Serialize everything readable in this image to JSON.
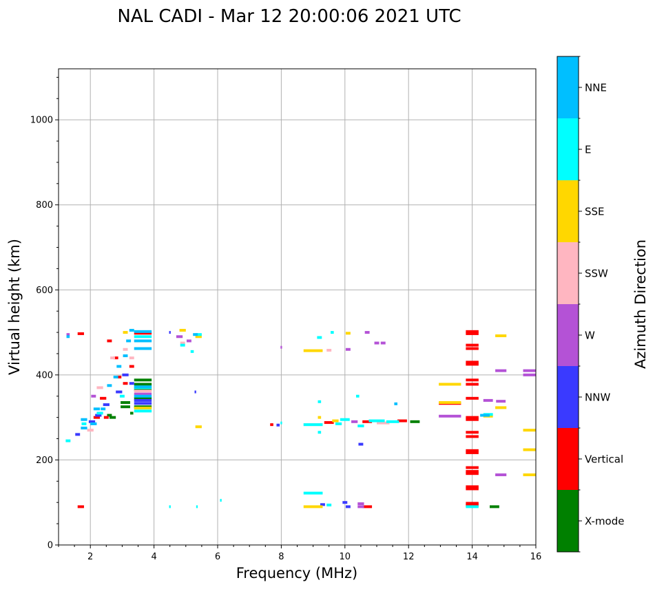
{
  "chart_data": {
    "type": "scatter",
    "title": "NAL CADI - Mar 12 20:00:06 2021 UTC",
    "xlabel": "Frequency (MHz)",
    "ylabel": "Virtual height (km)",
    "xlim": [
      1,
      16
    ],
    "ylim": [
      0,
      1120
    ],
    "x_ticks": [
      2,
      4,
      6,
      8,
      10,
      12,
      14,
      16
    ],
    "x_tick_labels": [
      "2",
      "4",
      "6",
      "8",
      "10",
      "12",
      "14",
      "16"
    ],
    "y_ticks": [
      0,
      200,
      400,
      600,
      800,
      1000
    ],
    "y_tick_labels": [
      "0",
      "200",
      "400",
      "600",
      "800",
      "1000"
    ],
    "grid": true,
    "colorbar": {
      "title": "Azimuth Direction",
      "categories": [
        {
          "name": "X-mode",
          "color": "#008000"
        },
        {
          "name": "Vertical",
          "color": "#ff0000"
        },
        {
          "name": "NNW",
          "color": "#3a3aff"
        },
        {
          "name": "W",
          "color": "#b452d6"
        },
        {
          "name": "SSW",
          "color": "#ffb6c1"
        },
        {
          "name": "SSE",
          "color": "#ffd700"
        },
        {
          "name": "E",
          "color": "#00ffff"
        },
        {
          "name": "NNE",
          "color": "#00bfff"
        }
      ]
    },
    "series": [
      {
        "name": "X-mode",
        "points": [
          [
            3.1,
            325,
            0.3
          ],
          [
            3.1,
            335,
            0.3
          ],
          [
            3.65,
            325,
            0.55
          ],
          [
            3.65,
            345,
            0.55
          ],
          [
            3.65,
            365,
            0.55
          ],
          [
            3.65,
            378,
            0.55
          ],
          [
            3.65,
            388,
            0.55
          ],
          [
            2.7,
            300,
            0.2
          ],
          [
            2.6,
            305,
            0.15
          ],
          [
            3.3,
            310,
            0.1
          ],
          [
            12.2,
            290,
            0.3
          ],
          [
            14.7,
            90,
            0.3
          ]
        ]
      },
      {
        "name": "Vertical",
        "points": [
          [
            1.7,
            497,
            0.2
          ],
          [
            1.7,
            90,
            0.2
          ],
          [
            2.6,
            480,
            0.15
          ],
          [
            2.8,
            440,
            0.15
          ],
          [
            3.3,
            420,
            0.15
          ],
          [
            3.65,
            498,
            0.55
          ],
          [
            2.4,
            345,
            0.2
          ],
          [
            2.9,
            395,
            0.15
          ],
          [
            3.1,
            380,
            0.15
          ],
          [
            2.2,
            300,
            0.2
          ],
          [
            2.5,
            300,
            0.15
          ],
          [
            9.5,
            288,
            0.3
          ],
          [
            10.7,
            290,
            0.3
          ],
          [
            11.8,
            292,
            0.3
          ],
          [
            10.7,
            90,
            0.3
          ],
          [
            13.3,
            333,
            0.7
          ],
          [
            14,
            502,
            0.4
          ],
          [
            14,
            497,
            0.4
          ],
          [
            14,
            470,
            0.4
          ],
          [
            14,
            462,
            0.4
          ],
          [
            14,
            430,
            0.4
          ],
          [
            14,
            425,
            0.4
          ],
          [
            14,
            388,
            0.4
          ],
          [
            14,
            378,
            0.4
          ],
          [
            14,
            345,
            0.4
          ],
          [
            14,
            300,
            0.4
          ],
          [
            14,
            295,
            0.4
          ],
          [
            14,
            265,
            0.4
          ],
          [
            14,
            255,
            0.4
          ],
          [
            14,
            222,
            0.4
          ],
          [
            14,
            217,
            0.4
          ],
          [
            14,
            182,
            0.4
          ],
          [
            14,
            173,
            0.4
          ],
          [
            14,
            168,
            0.4
          ],
          [
            14,
            137,
            0.4
          ],
          [
            14,
            132,
            0.4
          ],
          [
            14,
            98,
            0.4
          ],
          [
            14,
            93,
            0.4
          ],
          [
            7.7,
            283,
            0.1
          ]
        ]
      },
      {
        "name": "NNW",
        "points": [
          [
            1.6,
            260,
            0.15
          ],
          [
            2.05,
            290,
            0.2
          ],
          [
            2.25,
            305,
            0.2
          ],
          [
            2.5,
            330,
            0.2
          ],
          [
            2.9,
            360,
            0.2
          ],
          [
            3.1,
            400,
            0.2
          ],
          [
            3.65,
            333,
            0.55
          ],
          [
            3.65,
            340,
            0.55
          ],
          [
            3.3,
            380,
            0.15
          ],
          [
            4.5,
            500,
            0.05
          ],
          [
            5.3,
            360,
            0.05
          ],
          [
            10,
            100,
            0.15
          ],
          [
            10.1,
            90,
            0.15
          ],
          [
            10.5,
            237,
            0.15
          ],
          [
            9.3,
            95,
            0.15
          ],
          [
            7.9,
            282,
            0.1
          ]
        ]
      },
      {
        "name": "W",
        "points": [
          [
            1.3,
            495,
            0.1
          ],
          [
            2.1,
            350,
            0.15
          ],
          [
            3.65,
            355,
            0.55
          ],
          [
            4.8,
            490,
            0.2
          ],
          [
            5.1,
            480,
            0.15
          ],
          [
            10.1,
            460,
            0.15
          ],
          [
            10.7,
            500,
            0.15
          ],
          [
            11,
            475,
            0.15
          ],
          [
            11.2,
            475,
            0.15
          ],
          [
            10.3,
            290,
            0.2
          ],
          [
            10.5,
            97,
            0.2
          ],
          [
            10.5,
            90,
            0.2
          ],
          [
            13.3,
            303,
            0.7
          ],
          [
            14.5,
            340,
            0.3
          ],
          [
            14.9,
            338,
            0.3
          ],
          [
            14.9,
            410,
            0.35
          ],
          [
            14.9,
            165,
            0.35
          ],
          [
            15.8,
            410,
            0.4
          ],
          [
            15.8,
            400,
            0.4
          ],
          [
            8,
            465,
            0.05
          ]
        ]
      },
      {
        "name": "SSW",
        "points": [
          [
            2.3,
            370,
            0.2
          ],
          [
            2.7,
            440,
            0.15
          ],
          [
            3.1,
            460,
            0.15
          ],
          [
            3.3,
            440,
            0.15
          ],
          [
            3.65,
            362,
            0.55
          ],
          [
            4.9,
            475,
            0.15
          ],
          [
            9.0,
            283,
            0.6
          ],
          [
            11.2,
            287,
            0.4
          ],
          [
            2.0,
            270,
            0.2
          ],
          [
            9.5,
            458,
            0.15
          ]
        ]
      },
      {
        "name": "SSE",
        "points": [
          [
            3.65,
            322,
            0.55
          ],
          [
            4.9,
            505,
            0.2
          ],
          [
            5.4,
            278,
            0.2
          ],
          [
            9.0,
            457,
            0.6
          ],
          [
            9.0,
            90,
            0.6
          ],
          [
            10.1,
            498,
            0.15
          ],
          [
            9.2,
            300,
            0.1
          ],
          [
            9.7,
            292,
            0.2
          ],
          [
            13.3,
            378,
            0.7
          ],
          [
            13.3,
            335,
            0.7
          ],
          [
            14.5,
            303,
            0.3
          ],
          [
            14.9,
            492,
            0.35
          ],
          [
            14.9,
            323,
            0.35
          ],
          [
            15.8,
            270,
            0.4
          ],
          [
            15.8,
            224,
            0.4
          ],
          [
            15.8,
            165,
            0.4
          ],
          [
            5.4,
            490,
            0.2
          ],
          [
            3.1,
            500,
            0.15
          ]
        ]
      },
      {
        "name": "E",
        "points": [
          [
            1.3,
            245,
            0.15
          ],
          [
            1.8,
            285,
            0.15
          ],
          [
            2.3,
            310,
            0.2
          ],
          [
            3.0,
            350,
            0.15
          ],
          [
            3.65,
            315,
            0.55
          ],
          [
            3.65,
            370,
            0.55
          ],
          [
            3.65,
            490,
            0.55
          ],
          [
            4.9,
            470,
            0.15
          ],
          [
            5.2,
            455,
            0.1
          ],
          [
            5.4,
            495,
            0.2
          ],
          [
            6.1,
            105,
            0.05
          ],
          [
            9.0,
            283,
            0.6
          ],
          [
            9.0,
            122,
            0.6
          ],
          [
            9.2,
            337,
            0.1
          ],
          [
            9.2,
            265,
            0.1
          ],
          [
            9.2,
            488,
            0.15
          ],
          [
            9.5,
            94,
            0.15
          ],
          [
            9.8,
            285,
            0.2
          ],
          [
            10.0,
            295,
            0.3
          ],
          [
            10.4,
            350,
            0.1
          ],
          [
            10.5,
            280,
            0.2
          ],
          [
            11.0,
            292,
            0.5
          ],
          [
            11.5,
            290,
            0.4
          ],
          [
            14.0,
            90,
            0.4
          ],
          [
            14.5,
            307,
            0.3
          ],
          [
            5.35,
            90,
            0.05
          ],
          [
            4.5,
            90,
            0.05
          ],
          [
            8.0,
            287,
            0.05
          ],
          [
            9.6,
            500,
            0.1
          ]
        ]
      },
      {
        "name": "NNE",
        "points": [
          [
            1.3,
            490,
            0.1
          ],
          [
            1.8,
            275,
            0.2
          ],
          [
            1.8,
            295,
            0.2
          ],
          [
            2.2,
            320,
            0.2
          ],
          [
            2.6,
            375,
            0.15
          ],
          [
            2.9,
            420,
            0.15
          ],
          [
            3.1,
            445,
            0.15
          ],
          [
            3.2,
            480,
            0.15
          ],
          [
            3.65,
            480,
            0.55
          ],
          [
            3.65,
            502,
            0.55
          ],
          [
            3.65,
            462,
            0.55
          ],
          [
            3.65,
            350,
            0.55
          ],
          [
            3.65,
            372,
            0.55
          ],
          [
            2.1,
            285,
            0.2
          ],
          [
            2.4,
            320,
            0.15
          ],
          [
            2.8,
            395,
            0.15
          ],
          [
            3.3,
            505,
            0.15
          ],
          [
            5.3,
            495,
            0.15
          ],
          [
            11.6,
            332,
            0.1
          ],
          [
            14.4,
            305,
            0.3
          ]
        ]
      }
    ]
  }
}
